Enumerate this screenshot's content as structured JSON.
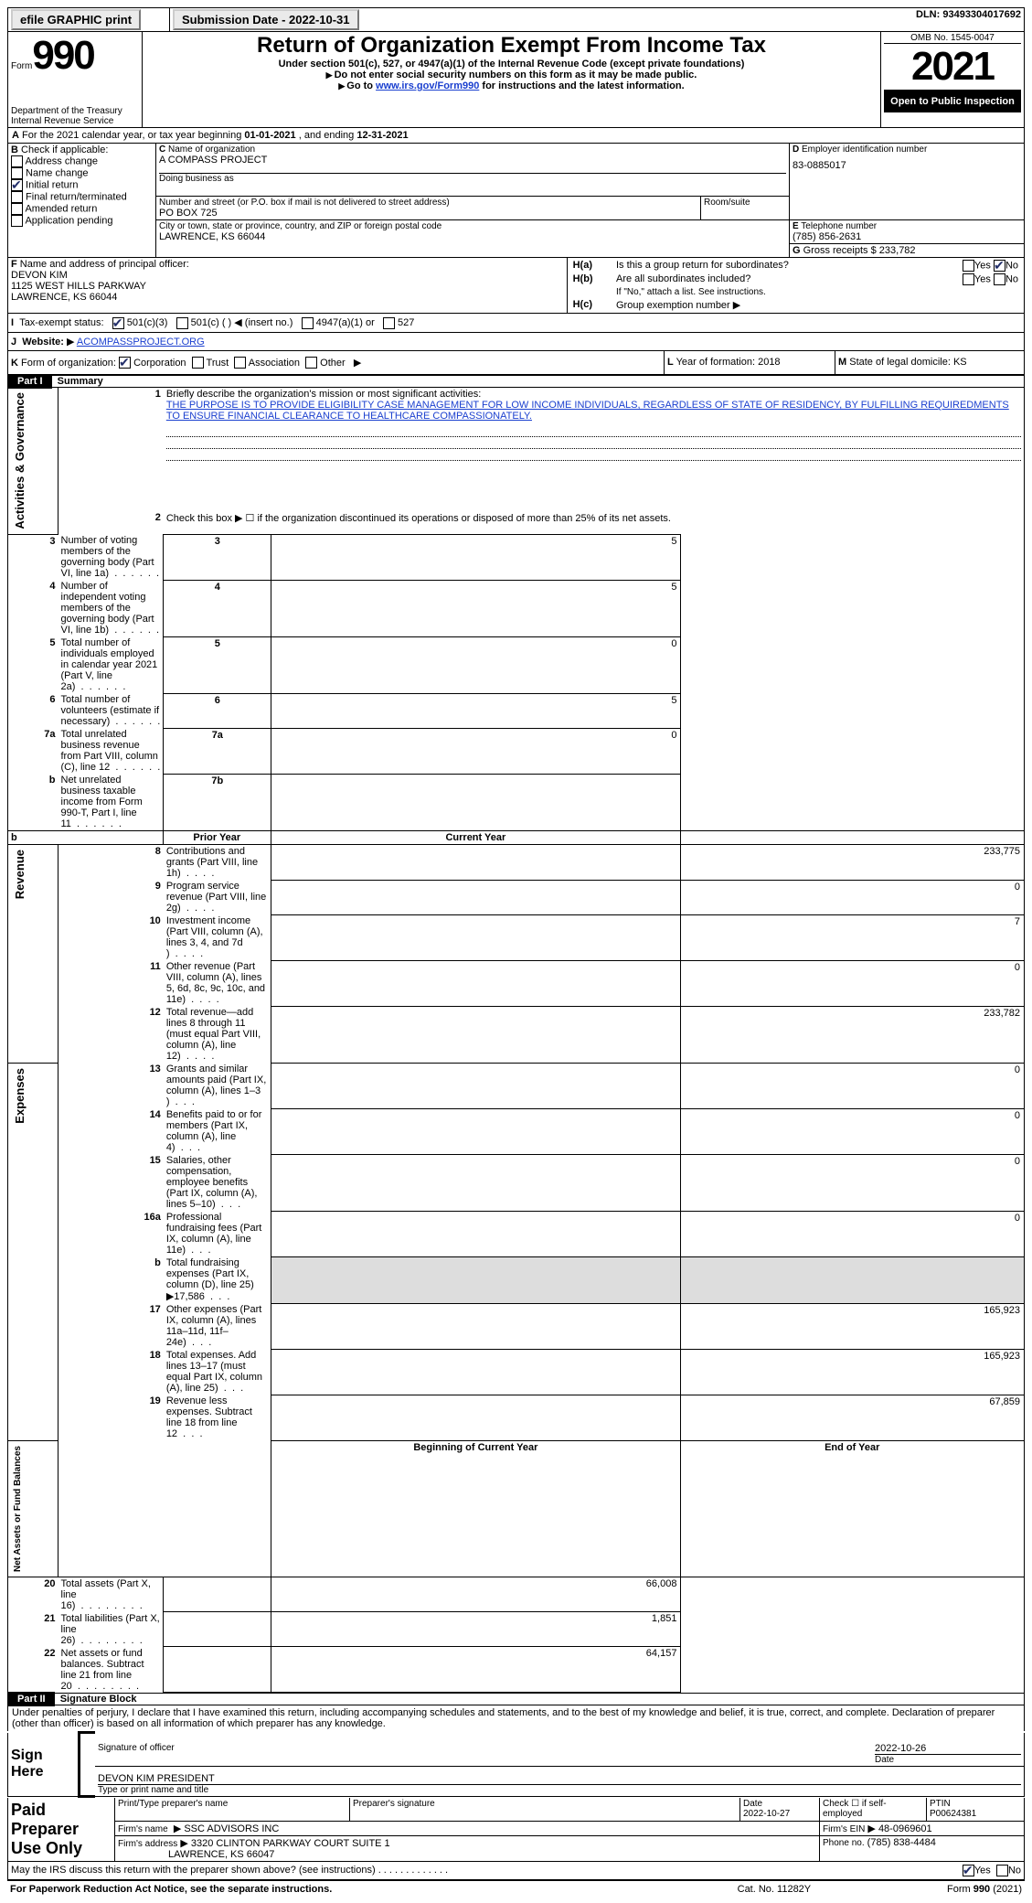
{
  "topbar": {
    "efile_label": "efile GRAPHIC print",
    "submission": "Submission Date - 2022-10-31",
    "dln": "DLN: 93493304017692"
  },
  "header": {
    "form_word": "Form",
    "form_num": "990",
    "dept": "Department of the Treasury",
    "irs": "Internal Revenue Service",
    "title": "Return of Organization Exempt From Income Tax",
    "subtitle": "Under section 501(c), 527, or 4947(a)(1) of the Internal Revenue Code (except private foundations)",
    "note1": "Do not enter social security numbers on this form as it may be made public.",
    "note2_pre": "Go to ",
    "note2_link": "www.irs.gov/Form990",
    "note2_post": " for instructions and the latest information.",
    "omb": "OMB No. 1545-0047",
    "year": "2021",
    "open": "Open to Public Inspection"
  },
  "periodA": {
    "text_pre": "For the 2021 calendar year, or tax year beginning ",
    "begin": "01-01-2021",
    "mid": " , and ending ",
    "end": "12-31-2021"
  },
  "checkB": {
    "label": "Check if applicable:",
    "items": [
      "Address change",
      "Name change",
      "Initial return",
      "Final return/terminated",
      "Amended return",
      "Application pending"
    ],
    "checked": [
      false,
      false,
      true,
      false,
      false,
      false
    ]
  },
  "blockC": {
    "name_label": "Name of organization",
    "name": "A COMPASS PROJECT",
    "dba_label": "Doing business as",
    "dba": "",
    "addr_label": "Number and street (or P.O. box if mail is not delivered to street address)",
    "room_label": "Room/suite",
    "addr": "PO BOX 725",
    "city_label": "City or town, state or province, country, and ZIP or foreign postal code",
    "city": "LAWRENCE, KS  66044"
  },
  "blockD": {
    "label": "Employer identification number",
    "value": "83-0885017"
  },
  "blockE": {
    "label": "Telephone number",
    "value": "(785) 856-2631"
  },
  "blockG": {
    "label": "Gross receipts $",
    "value": "233,782"
  },
  "blockF": {
    "label": "Name and address of principal officer:",
    "name": "DEVON KIM",
    "addr1": "1125 WEST HILLS PARKWAY",
    "addr2": "LAWRENCE, KS  66044"
  },
  "blockH": {
    "a": "Is this a group return for subordinates?",
    "a_no": true,
    "b": "Are all subordinates included?",
    "b_note": "If \"No,\" attach a list. See instructions.",
    "c": "Group exemption number"
  },
  "taxI": {
    "label": "Tax-exempt status:",
    "opts": [
      "501(c)(3)",
      "501(c) (  ) ◀ (insert no.)",
      "4947(a)(1) or",
      "527"
    ],
    "checked": [
      true,
      false,
      false,
      false
    ]
  },
  "websiteJ": {
    "label": "Website:",
    "value": "ACOMPASSPROJECT.ORG"
  },
  "orgK": {
    "label": "Form of organization:",
    "opts": [
      "Corporation",
      "Trust",
      "Association",
      "Other"
    ],
    "checked": [
      true,
      false,
      false,
      false
    ]
  },
  "yearL": {
    "label": "Year of formation:",
    "value": "2018"
  },
  "stateM": {
    "label": "State of legal domicile:",
    "value": "KS"
  },
  "part1": {
    "title": "Summary",
    "q1_label": "Briefly describe the organization's mission or most significant activities:",
    "q1_text": "THE PURPOSE IS TO PROVIDE ELIGIBILITY CASE MANAGEMENT FOR LOW INCOME INDIVIDUALS, REGARDLESS OF STATE OF RESIDENCY, BY FULFILLING REQUIREDMENTS TO ENSURE FINANCIAL CLEARANCE TO HEALTHCARE COMPASSIONATELY.",
    "q2": "Check this box ▶ ☐ if the organization discontinued its operations or disposed of more than 25% of its net assets.",
    "lines_top": [
      {
        "n": "3",
        "t": "Number of voting members of the governing body (Part VI, line 1a)",
        "box": "3",
        "v": "5"
      },
      {
        "n": "4",
        "t": "Number of independent voting members of the governing body (Part VI, line 1b)",
        "box": "4",
        "v": "5"
      },
      {
        "n": "5",
        "t": "Total number of individuals employed in calendar year 2021 (Part V, line 2a)",
        "box": "5",
        "v": "0"
      },
      {
        "n": "6",
        "t": "Total number of volunteers (estimate if necessary)",
        "box": "6",
        "v": "5"
      },
      {
        "n": "7a",
        "t": "Total unrelated business revenue from Part VIII, column (C), line 12",
        "box": "7a",
        "v": "0"
      },
      {
        "n": "b",
        "t": "Net unrelated business taxable income from Form 990-T, Part I, line 11",
        "box": "7b",
        "v": ""
      }
    ],
    "col_prior": "Prior Year",
    "col_current": "Current Year",
    "revenue": [
      {
        "n": "8",
        "t": "Contributions and grants (Part VIII, line 1h)",
        "p": "",
        "c": "233,775"
      },
      {
        "n": "9",
        "t": "Program service revenue (Part VIII, line 2g)",
        "p": "",
        "c": "0"
      },
      {
        "n": "10",
        "t": "Investment income (Part VIII, column (A), lines 3, 4, and 7d )",
        "p": "",
        "c": "7"
      },
      {
        "n": "11",
        "t": "Other revenue (Part VIII, column (A), lines 5, 6d, 8c, 9c, 10c, and 11e)",
        "p": "",
        "c": "0"
      },
      {
        "n": "12",
        "t": "Total revenue—add lines 8 through 11 (must equal Part VIII, column (A), line 12)",
        "p": "",
        "c": "233,782"
      }
    ],
    "expenses": [
      {
        "n": "13",
        "t": "Grants and similar amounts paid (Part IX, column (A), lines 1–3 )",
        "p": "",
        "c": "0"
      },
      {
        "n": "14",
        "t": "Benefits paid to or for members (Part IX, column (A), line 4)",
        "p": "",
        "c": "0"
      },
      {
        "n": "15",
        "t": "Salaries, other compensation, employee benefits (Part IX, column (A), lines 5–10)",
        "p": "",
        "c": "0"
      },
      {
        "n": "16a",
        "t": "Professional fundraising fees (Part IX, column (A), line 11e)",
        "p": "",
        "c": "0"
      },
      {
        "n": "b",
        "t": "Total fundraising expenses (Part IX, column (D), line 25) ▶17,586",
        "p": "shade",
        "c": "shade"
      },
      {
        "n": "17",
        "t": "Other expenses (Part IX, column (A), lines 11a–11d, 11f–24e)",
        "p": "",
        "c": "165,923"
      },
      {
        "n": "18",
        "t": "Total expenses. Add lines 13–17 (must equal Part IX, column (A), line 25)",
        "p": "",
        "c": "165,923"
      },
      {
        "n": "19",
        "t": "Revenue less expenses. Subtract line 18 from line 12",
        "p": "",
        "c": "67,859"
      }
    ],
    "col_begin": "Beginning of Current Year",
    "col_end": "End of Year",
    "netassets": [
      {
        "n": "20",
        "t": "Total assets (Part X, line 16)",
        "p": "",
        "c": "66,008"
      },
      {
        "n": "21",
        "t": "Total liabilities (Part X, line 26)",
        "p": "",
        "c": "1,851"
      },
      {
        "n": "22",
        "t": "Net assets or fund balances. Subtract line 21 from line 20",
        "p": "",
        "c": "64,157"
      }
    ],
    "side_labels": [
      "Activities & Governance",
      "Revenue",
      "Expenses",
      "Net Assets or Fund Balances"
    ]
  },
  "part2": {
    "title": "Signature Block",
    "decl": "Under penalties of perjury, I declare that I have examined this return, including accompanying schedules and statements, and to the best of my knowledge and belief, it is true, correct, and complete. Declaration of preparer (other than officer) is based on all information of which preparer has any knowledge.",
    "sign_here": "Sign Here",
    "sig_officer": "Signature of officer",
    "sig_date": "2022-10-26",
    "date_label": "Date",
    "officer_name": "DEVON KIM  PRESIDENT",
    "type_name": "Type or print name and title",
    "paid": "Paid Preparer Use Only",
    "prep_name_label": "Print/Type preparer's name",
    "prep_sig_label": "Preparer's signature",
    "prep_date_label": "Date",
    "prep_date": "2022-10-27",
    "check_self": "Check ☐ if self-employed",
    "ptin_label": "PTIN",
    "ptin": "P00624381",
    "firm_name_label": "Firm's name",
    "firm_name": "SSC ADVISORS INC",
    "firm_ein_label": "Firm's EIN",
    "firm_ein": "48-0969601",
    "firm_addr_label": "Firm's address",
    "firm_addr1": "3320 CLINTON PARKWAY COURT SUITE 1",
    "firm_addr2": "LAWRENCE, KS  66047",
    "firm_phone_label": "Phone no.",
    "firm_phone": "(785) 838-4484",
    "discuss": "May the IRS discuss this return with the preparer shown above? (see instructions)",
    "discuss_yes": true
  },
  "footer": {
    "pra": "For Paperwork Reduction Act Notice, see the separate instructions.",
    "cat": "Cat. No. 11282Y",
    "form": "Form 990 (2021)"
  },
  "labels": {
    "yes": "Yes",
    "no": "No",
    "letter_A": "A",
    "letter_B": "B",
    "letter_C": "C",
    "letter_D": "D",
    "letter_E": "E",
    "letter_F": "F",
    "letter_G": "G",
    "letter_H": "H",
    "letter_I": "I",
    "letter_J": "J",
    "letter_K": "K",
    "letter_L": "L",
    "letter_M": "M",
    "part1": "Part I",
    "part2": "Part II"
  }
}
